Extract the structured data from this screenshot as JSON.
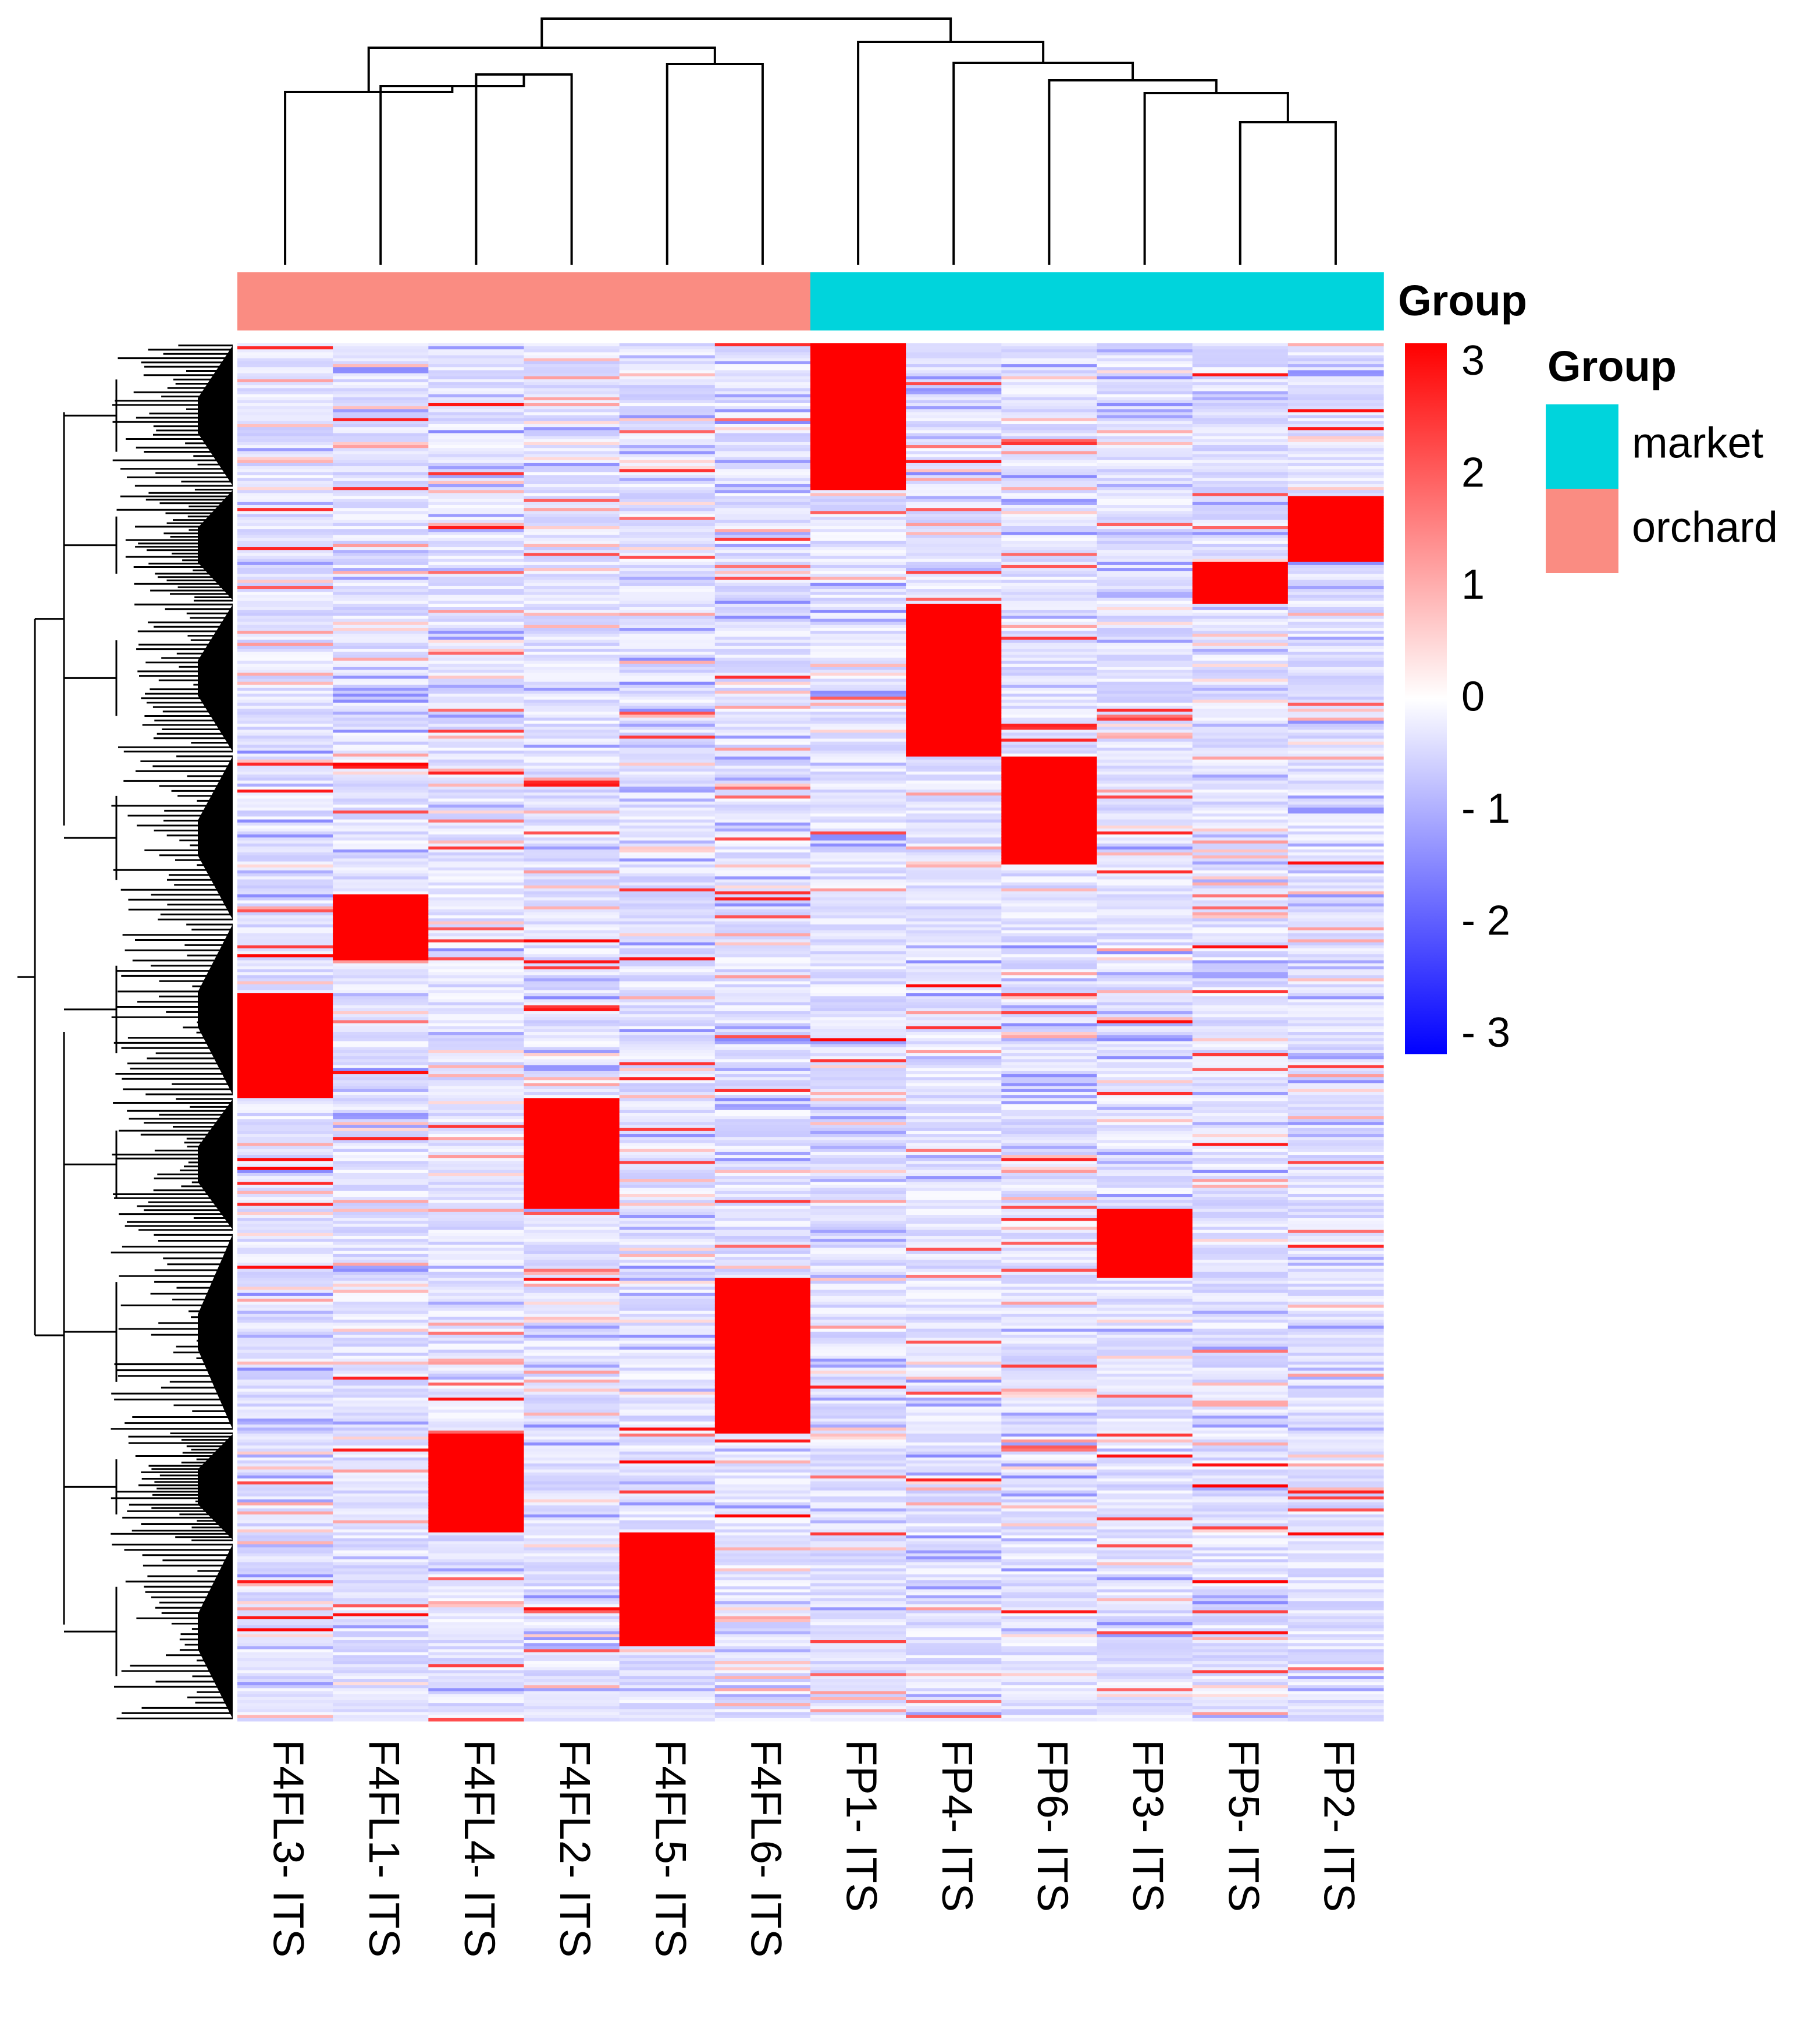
{
  "chart_data": {
    "type": "heatmap",
    "title": "",
    "columns": [
      "F4FL3- ITS",
      "F4FL1- ITS",
      "F4FL4- ITS",
      "F4FL2- ITS",
      "F4FL5- ITS",
      "F4FL6- ITS",
      "FP1- ITS",
      "FP4- ITS",
      "FP6- ITS",
      "FP3- ITS",
      "FP5- ITS",
      "FP2- ITS"
    ],
    "column_groups": [
      "orchard",
      "orchard",
      "orchard",
      "orchard",
      "orchard",
      "orchard",
      "market",
      "market",
      "market",
      "market",
      "market",
      "market"
    ],
    "annotation_title": "Group",
    "legend": {
      "title": "Group",
      "entries": [
        {
          "label": "market",
          "color": "#00D4DC"
        },
        {
          "label": "orchard",
          "color": "#FA8C82"
        }
      ]
    },
    "color_scale": {
      "min": -3,
      "max": 3,
      "ticks": [
        3,
        2,
        1,
        0,
        -1,
        -2,
        -3
      ],
      "tick_labels": [
        "3",
        "2",
        "1",
        "0",
        "- 1",
        "- 2",
        "- 3"
      ],
      "low_color": "#0000FF",
      "mid_color": "#FFFFFF",
      "high_color": "#FF0000"
    },
    "row_count": 460,
    "row_blocks": [
      {
        "col": 6,
        "start_frac": 0.0,
        "end_frac": 0.105,
        "value": 3
      },
      {
        "col": 11,
        "start_frac": 0.11,
        "end_frac": 0.158,
        "value": 3
      },
      {
        "col": 10,
        "start_frac": 0.158,
        "end_frac": 0.188,
        "value": 3
      },
      {
        "col": 7,
        "start_frac": 0.188,
        "end_frac": 0.298,
        "value": 3
      },
      {
        "col": 8,
        "start_frac": 0.298,
        "end_frac": 0.378,
        "value": 3
      },
      {
        "col": 1,
        "start_frac": 0.398,
        "end_frac": 0.447,
        "value": 3
      },
      {
        "col": 0,
        "start_frac": 0.47,
        "end_frac": 0.547,
        "value": 3
      },
      {
        "col": 3,
        "start_frac": 0.547,
        "end_frac": 0.627,
        "value": 3
      },
      {
        "col": 9,
        "start_frac": 0.627,
        "end_frac": 0.678,
        "value": 3
      },
      {
        "col": 5,
        "start_frac": 0.678,
        "end_frac": 0.79,
        "value": 3
      },
      {
        "col": 2,
        "start_frac": 0.79,
        "end_frac": 0.862,
        "value": 3
      },
      {
        "col": 4,
        "start_frac": 0.862,
        "end_frac": 0.945,
        "value": 3
      }
    ],
    "row_dendrogram": "left",
    "column_dendrogram": "top",
    "legend_placement": "right"
  }
}
